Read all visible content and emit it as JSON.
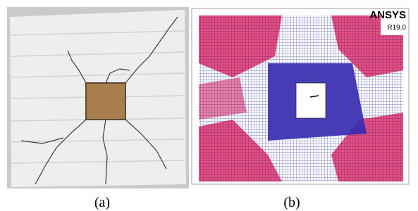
{
  "figure": {
    "panels": [
      {
        "label": "(a)"
      },
      {
        "label": "(b)",
        "software": "ANSYS",
        "version": "R19.0"
      }
    ]
  }
}
